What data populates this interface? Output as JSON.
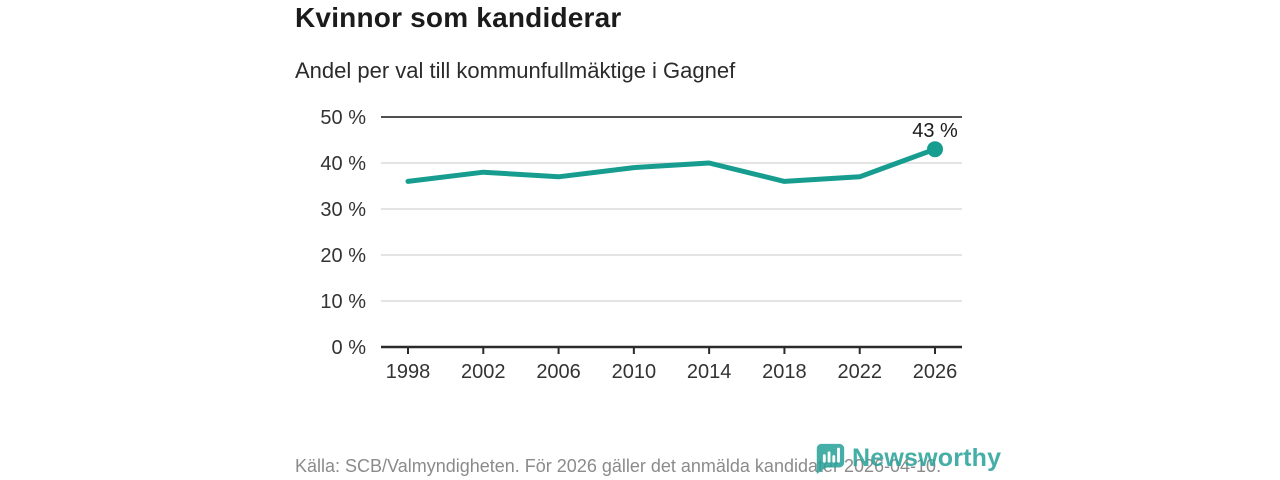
{
  "header": {
    "title": "Kvinnor som kandiderar",
    "subtitle": "Andel per val till kommunfullmäktige i Gagnef"
  },
  "chart_data": {
    "type": "line",
    "title": "Kvinnor som kandiderar",
    "subtitle": "Andel per val till kommunfullmäktige i Gagnef",
    "categories": [
      "1998",
      "2002",
      "2006",
      "2010",
      "2014",
      "2018",
      "2022",
      "2026"
    ],
    "series": [
      {
        "name": "Kvinnor som kandiderar",
        "values": [
          36,
          38,
          37,
          39,
          40,
          36,
          37,
          43
        ]
      }
    ],
    "unit": "%",
    "ylim": [
      0,
      50
    ],
    "yticks": [
      0,
      10,
      20,
      30,
      40,
      50
    ],
    "ytick_label_suffix": " %",
    "grid": true,
    "legend_position": "none",
    "end_point_label": "43 %",
    "line_color": "#169d8f"
  },
  "footer": {
    "source": "Källa: SCB/Valmyndigheten. För 2026 gäller det anmälda kandidater 2026-04-10.",
    "brand_name": "Newsworthy",
    "brand_color": "#2aa49a"
  },
  "colors": {
    "line": "#169d8f",
    "axis_text": "#333333",
    "grid_light": "#dcdcdc",
    "grid_top": "#4f4f4f",
    "axis_line": "#2b2b2b",
    "title_text": "#1b1b1b",
    "end_label_text": "#1b1b1b",
    "source_text": "#8b8b8b"
  }
}
